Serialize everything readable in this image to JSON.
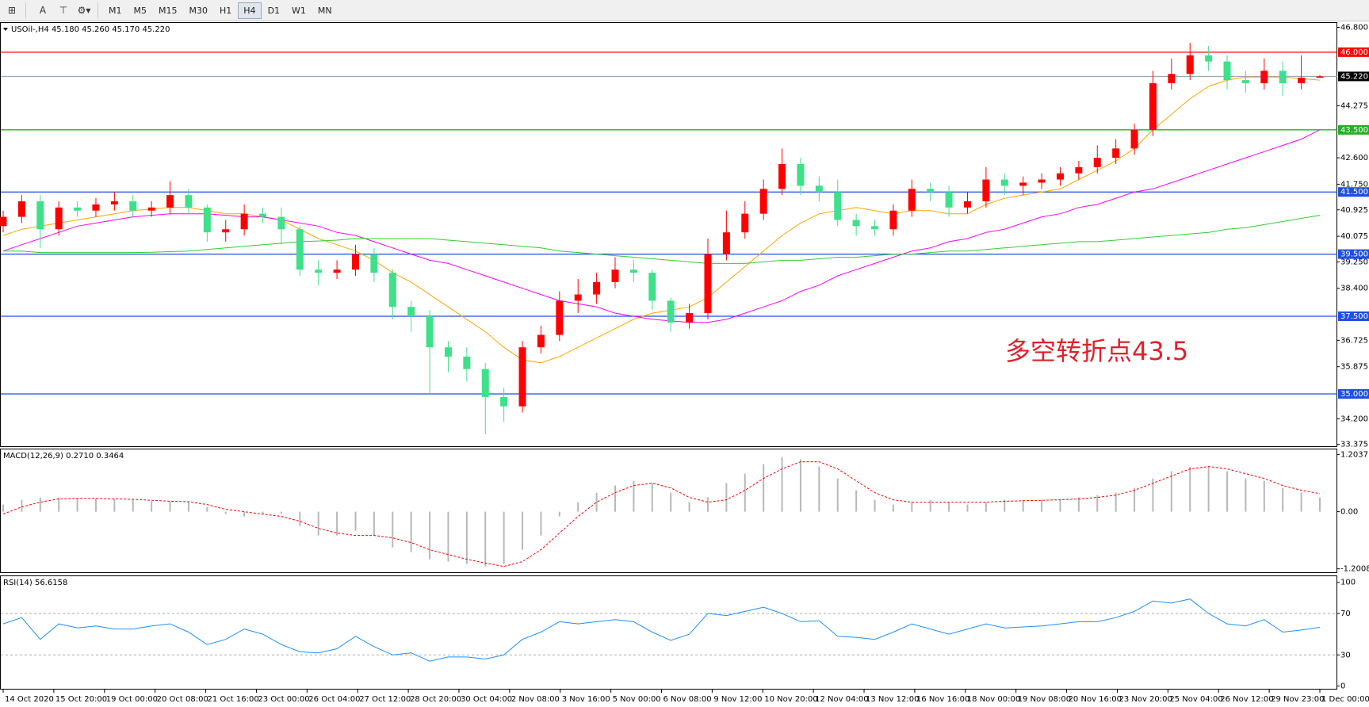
{
  "toolbar": {
    "timeframes": [
      "M1",
      "M5",
      "M15",
      "M30",
      "H1",
      "H4",
      "D1",
      "W1",
      "MN"
    ],
    "active": "H4"
  },
  "time_axis": {
    "labels": [
      "14 Oct 2020",
      "15 Oct 20:00",
      "19 Oct 00:00",
      "20 Oct 08:00",
      "21 Oct 16:00",
      "23 Oct 00:00",
      "26 Oct 04:00",
      "27 Oct 12:00",
      "28 Oct 20:00",
      "30 Oct 04:00",
      "2 Nov 08:00",
      "3 Nov 16:00",
      "5 Nov 00:00",
      "6 Nov 08:00",
      "9 Nov 12:00",
      "10 Nov 20:00",
      "12 Nov 04:00",
      "13 Nov 12:00",
      "16 Nov 16:00",
      "18 Nov 00:00",
      "19 Nov 08:00",
      "20 Nov 16:00",
      "23 Nov 20:00",
      "25 Nov 04:00",
      "26 Nov 12:00",
      "29 Nov 23:00",
      "1 Dec 00:00"
    ]
  },
  "chart_data": [
    {
      "type": "candlestick",
      "title": "USOil-,H4  45.180 45.260 45.170 45.220",
      "annotation": "多空转折点43.5",
      "up_color": "#ff0000",
      "down_color": "#3ee08a",
      "open": [
        40.4,
        40.7,
        41.2,
        40.3,
        41.0,
        40.9,
        41.1,
        41.2,
        40.9,
        41.0,
        41.4,
        41.0,
        40.2,
        40.3,
        40.8,
        40.7,
        40.3,
        39.0,
        38.9,
        39.0,
        39.5,
        38.9,
        37.8,
        37.5,
        36.5,
        36.2,
        35.8,
        34.9,
        34.6,
        36.5,
        36.9,
        38.0,
        38.2,
        38.6,
        39.0,
        38.9,
        38.0,
        37.3,
        37.6,
        39.5,
        40.2,
        40.8,
        41.6,
        42.4,
        41.7,
        41.5,
        40.6,
        40.4,
        40.3,
        40.9,
        41.6,
        41.5,
        41.0,
        41.2,
        41.9,
        41.7,
        41.8,
        41.9,
        42.1,
        42.3,
        42.6,
        42.9,
        43.5,
        45.0,
        45.3,
        45.9,
        45.7,
        45.1,
        45.0,
        45.4,
        45.0,
        45.18
      ],
      "high": [
        40.9,
        41.4,
        41.4,
        41.2,
        41.2,
        41.3,
        41.5,
        41.4,
        41.2,
        41.85,
        41.6,
        41.1,
        40.6,
        41.1,
        41.0,
        41.0,
        40.4,
        39.3,
        39.3,
        39.8,
        39.7,
        39.0,
        38.0,
        37.7,
        36.7,
        36.5,
        36.0,
        35.2,
        36.7,
        37.2,
        38.3,
        38.7,
        38.9,
        39.4,
        39.3,
        39.0,
        38.1,
        37.9,
        40.0,
        40.9,
        41.2,
        41.9,
        42.9,
        42.6,
        42.0,
        41.9,
        40.8,
        40.6,
        41.1,
        41.9,
        41.8,
        41.7,
        41.5,
        42.3,
        42.1,
        42.0,
        42.1,
        42.3,
        42.5,
        43.0,
        43.2,
        43.7,
        45.4,
        45.8,
        46.3,
        46.2,
        45.9,
        45.4,
        45.8,
        45.7,
        45.9,
        45.26
      ],
      "low": [
        40.2,
        40.5,
        39.7,
        40.1,
        40.7,
        40.7,
        40.9,
        40.7,
        40.7,
        40.8,
        40.8,
        39.9,
        39.9,
        40.1,
        40.5,
        39.8,
        38.8,
        38.5,
        38.7,
        38.8,
        38.6,
        37.4,
        37.0,
        35.0,
        35.7,
        35.4,
        33.7,
        34.1,
        34.4,
        36.3,
        36.7,
        37.6,
        37.9,
        38.4,
        38.6,
        37.7,
        37.0,
        37.1,
        37.4,
        39.3,
        40.0,
        40.6,
        41.4,
        41.4,
        41.2,
        40.4,
        40.1,
        40.1,
        40.1,
        40.7,
        41.2,
        40.7,
        40.8,
        41.0,
        41.4,
        41.4,
        41.6,
        41.7,
        41.9,
        42.1,
        42.4,
        42.7,
        43.3,
        44.8,
        45.1,
        45.4,
        44.8,
        44.7,
        44.8,
        44.6,
        44.8,
        45.17
      ],
      "close": [
        40.7,
        41.2,
        40.3,
        41.0,
        40.9,
        41.1,
        41.2,
        40.9,
        41.0,
        41.4,
        41.0,
        40.2,
        40.3,
        40.8,
        40.7,
        40.3,
        39.0,
        38.9,
        39.0,
        39.5,
        38.9,
        37.8,
        37.5,
        36.5,
        36.2,
        35.8,
        34.9,
        34.6,
        36.5,
        36.9,
        38.0,
        38.2,
        38.6,
        39.0,
        38.9,
        38.0,
        37.3,
        37.6,
        39.5,
        40.2,
        40.8,
        41.6,
        42.4,
        41.7,
        41.5,
        40.6,
        40.4,
        40.3,
        40.9,
        41.6,
        41.5,
        41.0,
        41.2,
        41.9,
        41.7,
        41.8,
        41.9,
        42.1,
        42.3,
        42.6,
        42.9,
        43.5,
        45.0,
        45.3,
        45.9,
        45.7,
        45.1,
        45.0,
        45.4,
        45.0,
        45.18,
        45.22
      ],
      "series": [
        {
          "color": "#ffa500",
          "values": [
            40.1,
            40.3,
            40.4,
            40.5,
            40.6,
            40.7,
            40.8,
            40.9,
            40.95,
            41.0,
            41.0,
            40.9,
            40.8,
            40.8,
            40.7,
            40.6,
            40.3,
            40.0,
            39.8,
            39.6,
            39.3,
            38.9,
            38.6,
            38.2,
            37.8,
            37.4,
            37.0,
            36.5,
            36.1,
            36.0,
            36.2,
            36.5,
            36.8,
            37.1,
            37.4,
            37.6,
            37.7,
            37.8,
            38.1,
            38.6,
            39.1,
            39.6,
            40.1,
            40.5,
            40.8,
            40.9,
            41.0,
            40.9,
            40.8,
            40.9,
            40.9,
            40.8,
            40.8,
            41.1,
            41.3,
            41.4,
            41.5,
            41.6,
            41.9,
            42.2,
            42.5,
            42.9,
            43.5,
            44.0,
            44.5,
            44.9,
            45.1,
            45.2,
            45.2,
            45.2,
            45.15,
            45.1
          ]
        },
        {
          "color": "#ff00ff",
          "values": [
            39.6,
            39.8,
            40.0,
            40.2,
            40.4,
            40.5,
            40.6,
            40.7,
            40.75,
            40.8,
            40.8,
            40.8,
            40.75,
            40.7,
            40.7,
            40.6,
            40.5,
            40.4,
            40.2,
            40.1,
            39.9,
            39.7,
            39.5,
            39.3,
            39.2,
            39.0,
            38.8,
            38.6,
            38.4,
            38.2,
            38.0,
            37.9,
            37.8,
            37.6,
            37.5,
            37.4,
            37.35,
            37.3,
            37.3,
            37.4,
            37.6,
            37.8,
            38.0,
            38.3,
            38.5,
            38.8,
            39.0,
            39.2,
            39.4,
            39.6,
            39.7,
            39.9,
            40.0,
            40.2,
            40.3,
            40.5,
            40.7,
            40.8,
            41.0,
            41.1,
            41.3,
            41.5,
            41.6,
            41.8,
            42.0,
            42.2,
            42.4,
            42.6,
            42.8,
            43.0,
            43.2,
            43.5
          ]
        },
        {
          "color": "#32cd32",
          "values": [
            39.6,
            39.6,
            39.55,
            39.55,
            39.55,
            39.55,
            39.55,
            39.55,
            39.56,
            39.58,
            39.6,
            39.65,
            39.7,
            39.75,
            39.8,
            39.85,
            39.9,
            39.92,
            39.95,
            40.0,
            40.0,
            40.0,
            40.0,
            40.0,
            39.95,
            39.9,
            39.85,
            39.8,
            39.75,
            39.7,
            39.6,
            39.55,
            39.5,
            39.45,
            39.4,
            39.35,
            39.3,
            39.25,
            39.2,
            39.2,
            39.2,
            39.25,
            39.3,
            39.3,
            39.35,
            39.4,
            39.4,
            39.45,
            39.5,
            39.5,
            39.55,
            39.6,
            39.6,
            39.65,
            39.7,
            39.75,
            39.8,
            39.85,
            39.9,
            39.9,
            39.95,
            40.0,
            40.05,
            40.1,
            40.15,
            40.2,
            40.3,
            40.35,
            40.45,
            40.55,
            40.65,
            40.75
          ]
        }
      ],
      "levels": [
        {
          "value": 46,
          "label": "46.000",
          "color": "#ff0000"
        },
        {
          "value": 43.5,
          "label": "43.500",
          "color": "#22b022"
        },
        {
          "value": 41.5,
          "label": "41.500",
          "color": "#1d4fe0"
        },
        {
          "value": 39.5,
          "label": "39.500",
          "color": "#1d4fe0"
        },
        {
          "value": 37.5,
          "label": "37.500",
          "color": "#1d4fe0"
        },
        {
          "value": 35,
          "label": "35.000",
          "color": "#1d4fe0"
        }
      ],
      "current_price": {
        "value": 45.22,
        "label": "45.220",
        "color": "#000000"
      },
      "ylim": [
        33.29,
        46.94
      ],
      "yticks": [
        {
          "value": 46.8,
          "label": "46.800"
        },
        {
          "value": 44.275,
          "label": "44.275"
        },
        {
          "value": 42.6,
          "label": "42.600"
        },
        {
          "value": 41.75,
          "label": "41.750"
        },
        {
          "value": 40.925,
          "label": "40.925"
        },
        {
          "value": 40.075,
          "label": "40.075"
        },
        {
          "value": 39.25,
          "label": "39.250"
        },
        {
          "value": 38.4,
          "label": "38.400"
        },
        {
          "value": 36.725,
          "label": "36.725"
        },
        {
          "value": 35.875,
          "label": "35.875"
        },
        {
          "value": 34.2,
          "label": "34.200"
        },
        {
          "value": 33.375,
          "label": "33.375"
        }
      ]
    },
    {
      "type": "macd",
      "title": "MACD(12,26,9) 0.2710 0.3464",
      "histogram_color": "#b8b8b8",
      "signal_color": "#ff0000",
      "histogram": [
        0.15,
        0.25,
        0.3,
        0.3,
        0.28,
        0.28,
        0.27,
        0.25,
        0.22,
        0.22,
        0.2,
        0.1,
        -0.05,
        -0.1,
        -0.05,
        -0.05,
        -0.3,
        -0.5,
        -0.5,
        -0.4,
        -0.5,
        -0.75,
        -0.85,
        -1.0,
        -1.05,
        -1.1,
        -1.15,
        -1.1,
        -0.8,
        -0.5,
        -0.1,
        0.2,
        0.4,
        0.55,
        0.65,
        0.6,
        0.4,
        0.2,
        0.3,
        0.6,
        0.8,
        1.0,
        1.15,
        1.1,
        0.95,
        0.7,
        0.45,
        0.25,
        0.15,
        0.2,
        0.25,
        0.2,
        0.15,
        0.2,
        0.25,
        0.25,
        0.25,
        0.25,
        0.3,
        0.35,
        0.4,
        0.5,
        0.7,
        0.85,
        0.95,
        0.95,
        0.85,
        0.7,
        0.65,
        0.5,
        0.4,
        0.3
      ],
      "signal": [
        -0.05,
        0.1,
        0.2,
        0.27,
        0.28,
        0.28,
        0.27,
        0.26,
        0.24,
        0.22,
        0.21,
        0.15,
        0.05,
        0.0,
        -0.05,
        -0.1,
        -0.2,
        -0.35,
        -0.45,
        -0.5,
        -0.5,
        -0.55,
        -0.65,
        -0.8,
        -0.9,
        -1.0,
        -1.08,
        -1.15,
        -1.05,
        -0.8,
        -0.45,
        -0.1,
        0.2,
        0.4,
        0.55,
        0.6,
        0.5,
        0.3,
        0.2,
        0.25,
        0.45,
        0.7,
        0.9,
        1.05,
        1.05,
        0.9,
        0.65,
        0.4,
        0.25,
        0.2,
        0.2,
        0.2,
        0.2,
        0.2,
        0.22,
        0.23,
        0.24,
        0.25,
        0.27,
        0.3,
        0.35,
        0.45,
        0.6,
        0.75,
        0.9,
        0.95,
        0.9,
        0.8,
        0.7,
        0.55,
        0.45,
        0.38
      ],
      "ylim": [
        -1.29,
        1.31
      ],
      "yticks": [
        {
          "value": 1.2037,
          "label": "1.2037"
        },
        {
          "value": 0,
          "label": "0.00"
        },
        {
          "value": -1.2008,
          "label": "-1.2008"
        }
      ]
    },
    {
      "type": "line",
      "title": "RSI(14) 56.6158",
      "color": "#1e90ff",
      "values": [
        60,
        66,
        45,
        60,
        56,
        58,
        55,
        55,
        58,
        60,
        52,
        40,
        45,
        55,
        50,
        40,
        33,
        32,
        36,
        48,
        38,
        30,
        32,
        24,
        28,
        28,
        26,
        30,
        45,
        52,
        62,
        60,
        62,
        64,
        62,
        52,
        44,
        50,
        70,
        68,
        72,
        76,
        70,
        62,
        63,
        48,
        47,
        45,
        52,
        60,
        55,
        50,
        55,
        60,
        56,
        57,
        58,
        60,
        62,
        62,
        66,
        72,
        82,
        80,
        84,
        70,
        60,
        58,
        64,
        52,
        54,
        56.6158
      ],
      "ylim": [
        -3.4,
        105.9
      ],
      "yticks": [
        0,
        30,
        70,
        100
      ],
      "dashed_levels": [
        30,
        70
      ]
    }
  ]
}
